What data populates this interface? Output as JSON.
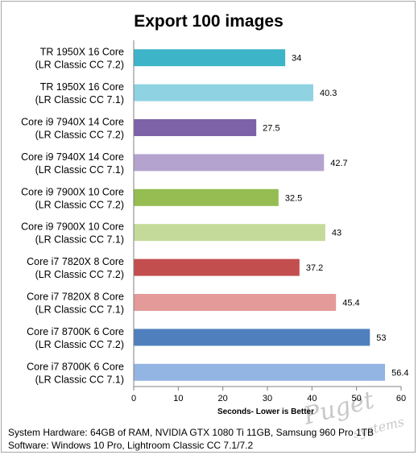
{
  "chart_data": {
    "type": "bar",
    "orientation": "horizontal",
    "title": "Export 100 images",
    "xlabel": "Seconds- Lower is Better",
    "ylabel": "",
    "xlim": [
      0,
      60
    ],
    "ticks": [
      "0",
      "10",
      "20",
      "30",
      "40",
      "50",
      "60"
    ],
    "grid": false,
    "legend": "none",
    "categories": [
      [
        "TR 1950X 16 Core",
        "(LR Classic CC 7.2)"
      ],
      [
        "TR 1950X 16 Core",
        "(LR Classic CC 7.1)"
      ],
      [
        "Core i9 7940X 14 Core",
        "(LR Classic CC 7.2)"
      ],
      [
        "Core i9 7940X 14 Core",
        "(LR Classic CC 7.1)"
      ],
      [
        "Core i9 7900X 10 Core",
        "(LR Classic CC 7.2)"
      ],
      [
        "Core i9 7900X 10 Core",
        "(LR Classic CC 7.1)"
      ],
      [
        "Core i7 7820X 8 Core",
        "(LR Classic CC 7.2)"
      ],
      [
        "Core i7 7820X 8 Core",
        "(LR Classic CC 7.1)"
      ],
      [
        "Core i7 8700K 6 Core",
        "(LR Classic CC 7.2)"
      ],
      [
        "Core i7 8700K 6 Core",
        "(LR Classic CC 7.1)"
      ]
    ],
    "values": [
      34,
      40.3,
      27.5,
      42.7,
      32.5,
      43,
      37.2,
      45.4,
      53,
      56.4
    ],
    "value_labels": [
      "34",
      "40.3",
      "27.5",
      "42.7",
      "32.5",
      "43",
      "37.2",
      "45.4",
      "53",
      "56.4"
    ],
    "colors": [
      "#3eb4c8",
      "#8fd3e3",
      "#7d62a8",
      "#b4a3cf",
      "#95bd52",
      "#c4da9a",
      "#c24f4e",
      "#e39a98",
      "#4f80bd",
      "#93b5e3"
    ]
  },
  "footer": {
    "line1": "System Hardware: 64GB of RAM, NVIDIA GTX 1080  Ti 11GB, Samsung 960 Pro 1TB",
    "line2": "Software: Windows 10 Pro, Lightroom Classic CC 7.1/7.2"
  },
  "watermark": {
    "line1": "Puget",
    "line2": "systems"
  }
}
